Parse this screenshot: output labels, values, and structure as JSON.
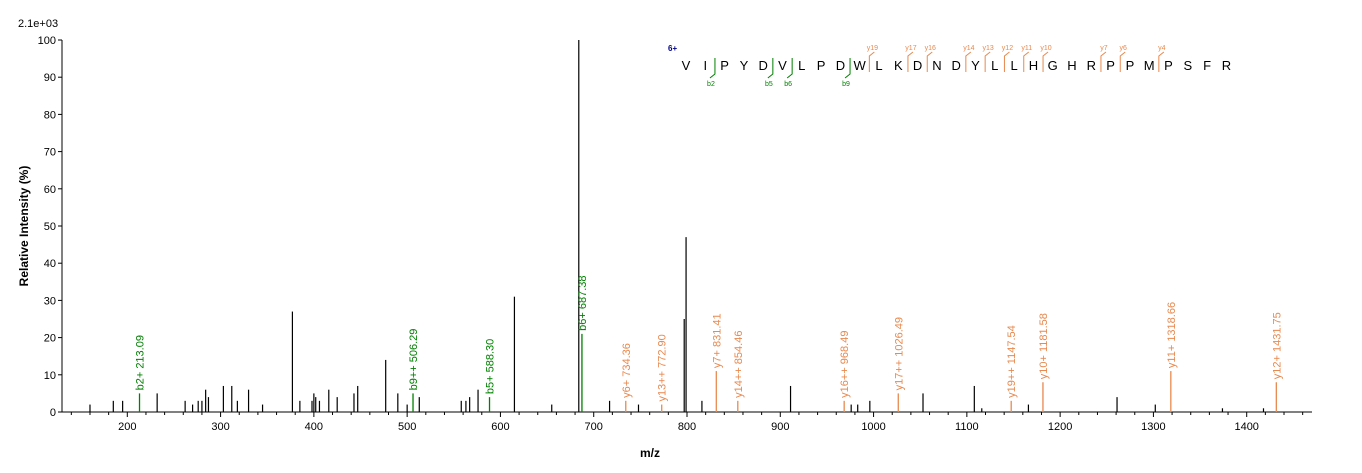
{
  "colors": {
    "b_ion": "#008000",
    "y_ion": "#e8894f",
    "unannotated": "#000000",
    "charge": "#00008b"
  },
  "chart_data": {
    "type": "bar",
    "title": "",
    "xlabel": "m/z",
    "ylabel": "Relative Intensity (%)",
    "intensity_scale": "2.1e+03",
    "xlim": [
      130,
      1470
    ],
    "ylim": [
      0,
      100
    ],
    "xticks": [
      "200",
      "300",
      "400",
      "500",
      "600",
      "700",
      "800",
      "900",
      "1000",
      "1100",
      "1200",
      "1300",
      "1400"
    ],
    "yticks": [
      "0",
      "10",
      "20",
      "30",
      "40",
      "50",
      "60",
      "70",
      "80",
      "90",
      "100"
    ],
    "peaks": [
      {
        "mz": 160,
        "i": 2
      },
      {
        "mz": 185,
        "i": 3
      },
      {
        "mz": 195,
        "i": 3
      },
      {
        "mz": 232,
        "i": 5
      },
      {
        "mz": 262,
        "i": 3
      },
      {
        "mz": 270,
        "i": 2
      },
      {
        "mz": 276,
        "i": 3
      },
      {
        "mz": 280,
        "i": 3
      },
      {
        "mz": 284,
        "i": 6
      },
      {
        "mz": 287,
        "i": 4
      },
      {
        "mz": 303,
        "i": 7
      },
      {
        "mz": 312,
        "i": 7
      },
      {
        "mz": 318,
        "i": 3
      },
      {
        "mz": 330,
        "i": 6
      },
      {
        "mz": 345,
        "i": 2
      },
      {
        "mz": 377,
        "i": 27
      },
      {
        "mz": 385,
        "i": 3
      },
      {
        "mz": 398,
        "i": 3
      },
      {
        "mz": 400,
        "i": 5
      },
      {
        "mz": 402,
        "i": 4
      },
      {
        "mz": 406,
        "i": 3
      },
      {
        "mz": 416,
        "i": 6
      },
      {
        "mz": 425,
        "i": 4
      },
      {
        "mz": 443,
        "i": 5
      },
      {
        "mz": 447,
        "i": 7
      },
      {
        "mz": 477,
        "i": 14
      },
      {
        "mz": 490,
        "i": 5
      },
      {
        "mz": 500,
        "i": 2
      },
      {
        "mz": 513,
        "i": 4
      },
      {
        "mz": 558,
        "i": 3
      },
      {
        "mz": 563,
        "i": 3
      },
      {
        "mz": 567,
        "i": 4
      },
      {
        "mz": 576,
        "i": 6
      },
      {
        "mz": 615,
        "i": 31
      },
      {
        "mz": 655,
        "i": 2
      },
      {
        "mz": 684,
        "i": 100
      },
      {
        "mz": 717,
        "i": 3
      },
      {
        "mz": 748,
        "i": 2
      },
      {
        "mz": 797,
        "i": 25
      },
      {
        "mz": 799,
        "i": 47
      },
      {
        "mz": 816,
        "i": 3
      },
      {
        "mz": 911,
        "i": 7
      },
      {
        "mz": 976,
        "i": 2
      },
      {
        "mz": 983,
        "i": 2
      },
      {
        "mz": 996,
        "i": 3
      },
      {
        "mz": 1053,
        "i": 5
      },
      {
        "mz": 1108,
        "i": 7
      },
      {
        "mz": 1116,
        "i": 1
      },
      {
        "mz": 1166,
        "i": 2
      },
      {
        "mz": 1261,
        "i": 4
      },
      {
        "mz": 1302,
        "i": 2
      },
      {
        "mz": 1374,
        "i": 1
      },
      {
        "mz": 1418,
        "i": 1
      }
    ],
    "annotated_peaks": [
      {
        "mz": 213.09,
        "i": 5,
        "label": "b2+ 213.09",
        "ion": "b"
      },
      {
        "mz": 506.29,
        "i": 5,
        "label": "b9++ 506.29",
        "ion": "b"
      },
      {
        "mz": 588.3,
        "i": 4,
        "label": "b5+ 588.30",
        "ion": "b"
      },
      {
        "mz": 687.38,
        "i": 21,
        "label": "b6+ 687.38",
        "ion": "b"
      },
      {
        "mz": 734.36,
        "i": 3,
        "label": "y6+ 734.36",
        "ion": "y"
      },
      {
        "mz": 772.9,
        "i": 2,
        "label": "y13++ 772.90",
        "ion": "y"
      },
      {
        "mz": 831.41,
        "i": 11,
        "label": "y7+ 831.41",
        "ion": "y"
      },
      {
        "mz": 854.46,
        "i": 3,
        "label": "y14++ 854.46",
        "ion": "y"
      },
      {
        "mz": 968.49,
        "i": 3,
        "label": "y16++ 968.49",
        "ion": "y"
      },
      {
        "mz": 1026.49,
        "i": 5,
        "label": "y17++ 1026.49",
        "ion": "y"
      },
      {
        "mz": 1147.54,
        "i": 3,
        "label": "y19++ 1147.54",
        "ion": "y"
      },
      {
        "mz": 1181.58,
        "i": 8,
        "label": "y10+ 1181.58",
        "ion": "y"
      },
      {
        "mz": 1318.66,
        "i": 11,
        "label": "y11+ 1318.66",
        "ion": "y"
      },
      {
        "mz": 1431.75,
        "i": 8,
        "label": "y12+ 1431.75",
        "ion": "y"
      }
    ],
    "sequence": {
      "charge": "6+",
      "residues": [
        "V",
        "I",
        "P",
        "Y",
        "D",
        "V",
        "L",
        "P",
        "D",
        "W",
        "L",
        "K",
        "D",
        "N",
        "D",
        "Y",
        "L",
        "L",
        "H",
        "G",
        "H",
        "R",
        "P",
        "P",
        "M",
        "P",
        "S",
        "F",
        "R"
      ],
      "b_ions": [
        {
          "after": 2,
          "label": "b2"
        },
        {
          "after": 5,
          "label": "b5"
        },
        {
          "after": 6,
          "label": "b6"
        },
        {
          "after": 9,
          "label": "b9"
        }
      ],
      "y_ions": [
        {
          "after": 10,
          "label": "y19"
        },
        {
          "after": 12,
          "label": "y17"
        },
        {
          "after": 13,
          "label": "y16"
        },
        {
          "after": 15,
          "label": "y14"
        },
        {
          "after": 16,
          "label": "y13"
        },
        {
          "after": 17,
          "label": "y12"
        },
        {
          "after": 18,
          "label": "y11"
        },
        {
          "after": 19,
          "label": "y10"
        },
        {
          "after": 22,
          "label": "y7"
        },
        {
          "after": 23,
          "label": "y6"
        },
        {
          "after": 25,
          "label": "y4"
        }
      ]
    }
  }
}
